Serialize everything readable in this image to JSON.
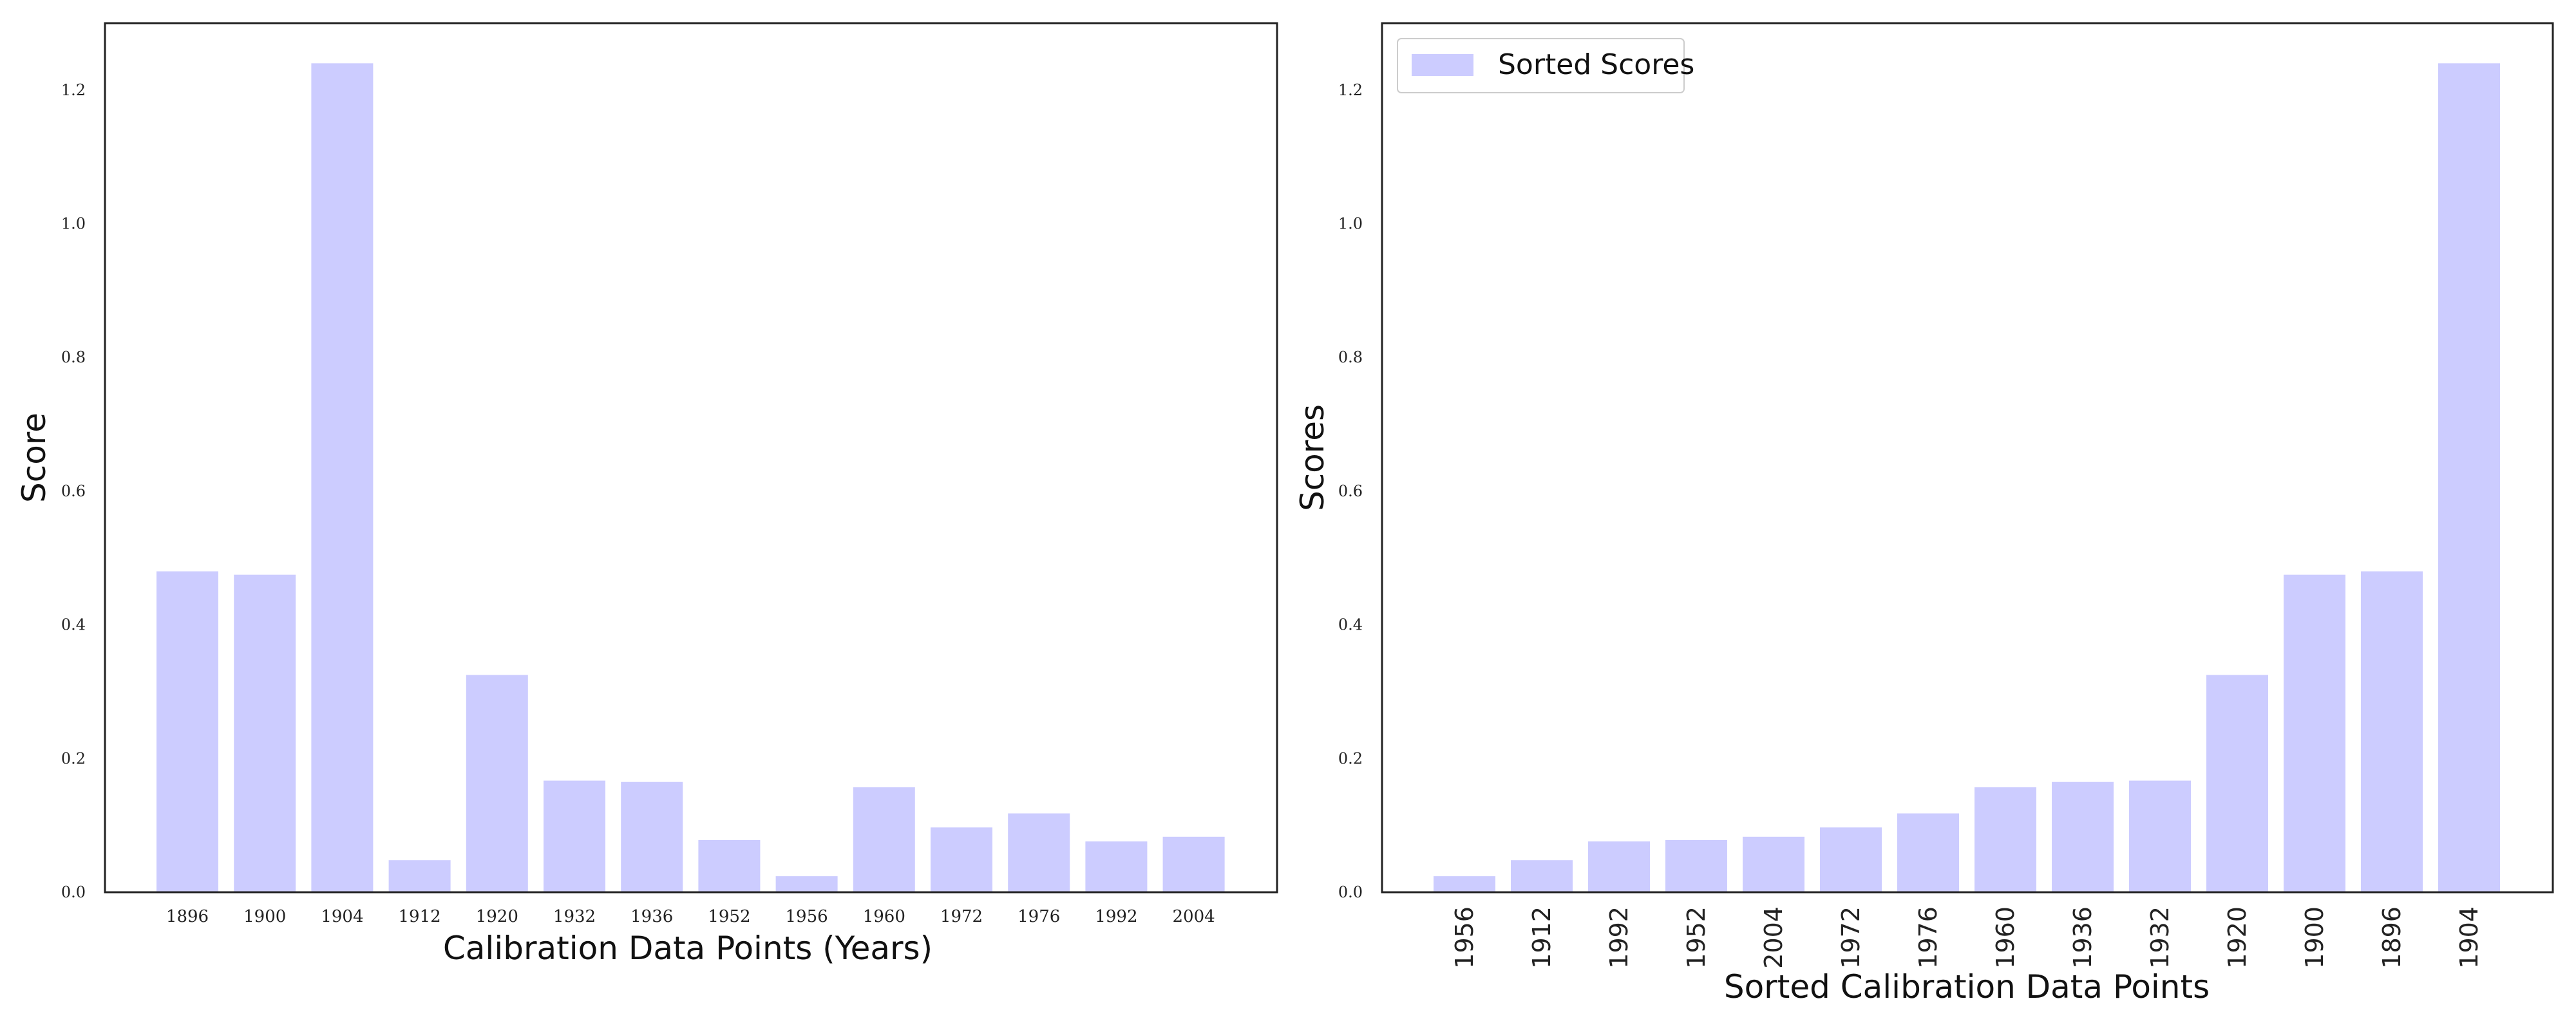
{
  "chart_data": [
    {
      "type": "bar",
      "categories": [
        "1896",
        "1900",
        "1904",
        "1912",
        "1920",
        "1932",
        "1936",
        "1952",
        "1956",
        "1960",
        "1972",
        "1976",
        "1992",
        "2004"
      ],
      "values": [
        0.48,
        0.475,
        1.24,
        0.048,
        0.325,
        0.167,
        0.165,
        0.078,
        0.024,
        0.157,
        0.097,
        0.118,
        0.076,
        0.083
      ],
      "xlabel": "Calibration Data Points (Years)",
      "ylabel": "Score",
      "ylim": [
        0,
        1.3
      ],
      "yticks": [
        "0.0",
        "0.2",
        "0.4",
        "0.6",
        "0.8",
        "1.0",
        "1.2"
      ],
      "color": "#ccccff",
      "grid": false
    },
    {
      "type": "bar",
      "categories": [
        "1956",
        "1912",
        "1992",
        "1952",
        "2004",
        "1972",
        "1976",
        "1960",
        "1936",
        "1932",
        "1920",
        "1900",
        "1896",
        "1904"
      ],
      "values": [
        0.024,
        0.048,
        0.076,
        0.078,
        0.083,
        0.097,
        0.118,
        0.157,
        0.165,
        0.167,
        0.325,
        0.475,
        0.48,
        1.24
      ],
      "series": [
        {
          "name": "Sorted Scores"
        }
      ],
      "xlabel": "Sorted Calibration Data Points",
      "ylabel": "Scores",
      "ylim": [
        0,
        1.3
      ],
      "yticks": [
        "0.0",
        "0.2",
        "0.4",
        "0.6",
        "0.8",
        "1.0",
        "1.2"
      ],
      "legend": "top-left",
      "color": "#ccccff",
      "grid": false
    }
  ]
}
